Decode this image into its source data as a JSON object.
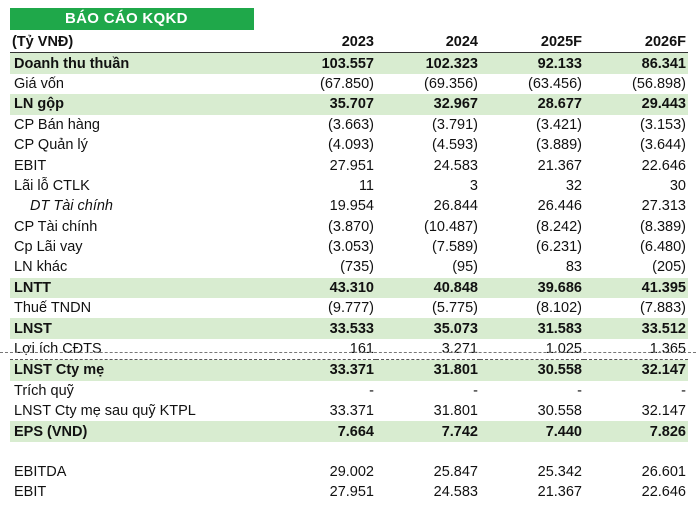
{
  "title": "BÁO CÁO KQKD",
  "header": {
    "label": "(Tỷ VNĐ)",
    "years": [
      "2023",
      "2024",
      "2025F",
      "2026F"
    ]
  },
  "rows": [
    {
      "label": "Doanh thu thuần",
      "values": [
        "103.557",
        "102.323",
        "92.133",
        "86.341"
      ],
      "style": "hl"
    },
    {
      "label": "Giá vốn",
      "values": [
        "(67.850)",
        "(69.356)",
        "(63.456)",
        "(56.898)"
      ],
      "style": ""
    },
    {
      "label": "LN gộp",
      "values": [
        "35.707",
        "32.967",
        "28.677",
        "29.443"
      ],
      "style": "hl"
    },
    {
      "label": "CP Bán hàng",
      "values": [
        "(3.663)",
        "(3.791)",
        "(3.421)",
        "(3.153)"
      ],
      "style": ""
    },
    {
      "label": "CP Quản lý",
      "values": [
        "(4.093)",
        "(4.593)",
        "(3.889)",
        "(3.644)"
      ],
      "style": ""
    },
    {
      "label": "EBIT",
      "values": [
        "27.951",
        "24.583",
        "21.367",
        "22.646"
      ],
      "style": ""
    },
    {
      "label": "Lãi lỗ CTLK",
      "values": [
        "11",
        "3",
        "32",
        "30"
      ],
      "style": ""
    },
    {
      "label": "DT Tài chính",
      "values": [
        "19.954",
        "26.844",
        "26.446",
        "27.313"
      ],
      "style": "it"
    },
    {
      "label": "CP Tài chính",
      "values": [
        "(3.870)",
        "(10.487)",
        "(8.242)",
        "(8.389)"
      ],
      "style": ""
    },
    {
      "label": "Cp Lãi vay",
      "values": [
        "(3.053)",
        "(7.589)",
        "(6.231)",
        "(6.480)"
      ],
      "style": ""
    },
    {
      "label": "LN khác",
      "values": [
        "(735)",
        "(95)",
        "83",
        "(205)"
      ],
      "style": ""
    },
    {
      "label": "LNTT",
      "values": [
        "43.310",
        "40.848",
        "39.686",
        "41.395"
      ],
      "style": "hl"
    },
    {
      "label": "Thuế TNDN",
      "values": [
        "(9.777)",
        "(5.775)",
        "(8.102)",
        "(7.883)"
      ],
      "style": ""
    },
    {
      "label": "LNST",
      "values": [
        "33.533",
        "35.073",
        "31.583",
        "33.512"
      ],
      "style": "hl"
    },
    {
      "label": "Lợi ích CĐTS",
      "values": [
        "161",
        "3.271",
        "1.025",
        "1.365"
      ],
      "style": "dash"
    },
    {
      "label": "LNST Cty mẹ",
      "values": [
        "33.371",
        "31.801",
        "30.558",
        "32.147"
      ],
      "style": "hl"
    },
    {
      "label": "Trích quỹ",
      "values": [
        "-",
        "-",
        "-",
        "-"
      ],
      "style": ""
    },
    {
      "label": "LNST Cty mẹ sau quỹ KTPL",
      "values": [
        "33.371",
        "31.801",
        "30.558",
        "32.147"
      ],
      "style": ""
    },
    {
      "label": "EPS (VND)",
      "values": [
        "7.664",
        "7.742",
        "7.440",
        "7.826"
      ],
      "style": "hl"
    },
    {
      "label": "",
      "values": [
        "",
        "",
        "",
        ""
      ],
      "style": "spacer"
    },
    {
      "label": "EBITDA",
      "values": [
        "29.002",
        "25.847",
        "25.342",
        "26.601"
      ],
      "style": ""
    },
    {
      "label": "EBIT",
      "values": [
        "27.951",
        "24.583",
        "21.367",
        "22.646"
      ],
      "style": ""
    }
  ]
}
